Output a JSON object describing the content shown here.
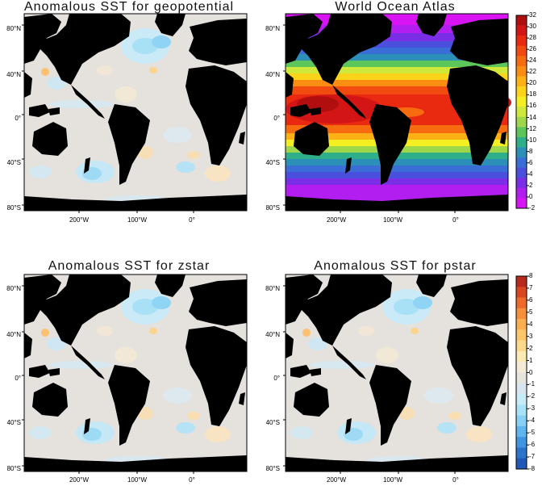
{
  "panels": [
    {
      "id": "geopotential",
      "title": "Anomalous SST for geopotential",
      "kind": "anomaly"
    },
    {
      "id": "woa",
      "title": "World Ocean Atlas",
      "kind": "sst"
    },
    {
      "id": "zstar",
      "title": "Anomalous SST for zstar",
      "kind": "anomaly"
    },
    {
      "id": "pstar",
      "title": "Anomalous SST for pstar",
      "kind": "anomaly"
    }
  ],
  "axes": {
    "y_ticks": [
      "80°N",
      "40°N",
      "0°",
      "40°S",
      "80°S"
    ],
    "x_ticks": [
      "200°W",
      "100°W",
      "0°"
    ]
  },
  "colorbars": {
    "sst": {
      "labels": [
        "32",
        "30",
        "28",
        "26",
        "24",
        "22",
        "20",
        "18",
        "16",
        "14",
        "12",
        "10",
        "8",
        "6",
        "4",
        "2",
        "0",
        "-2"
      ],
      "colors": [
        "#b10f0f",
        "#d41515",
        "#ea2a10",
        "#f24b10",
        "#f86c10",
        "#fb8e12",
        "#fdb114",
        "#fbd41a",
        "#f3ef22",
        "#cfe83a",
        "#9ed84a",
        "#5cc65a",
        "#2fae8a",
        "#2b8fb8",
        "#3a6ed6",
        "#4a4fde",
        "#7a2fe6",
        "#b21ef0",
        "#d814f5"
      ]
    },
    "anomaly": {
      "labels": [
        "8",
        "7",
        "6",
        "5",
        "4",
        "3",
        "2",
        "1",
        "0",
        "-1",
        "-2",
        "-3",
        "-4",
        "-5",
        "-6",
        "-7",
        "-8"
      ],
      "colors": [
        "#b82a1c",
        "#d9461f",
        "#ee6a2a",
        "#f78e3a",
        "#fbae4e",
        "#fcc76a",
        "#fdd98c",
        "#feeab3",
        "#f4ebd6",
        "#e7e4dd",
        "#d9e5ee",
        "#c5ecf8",
        "#a8e2f8",
        "#86d0f5",
        "#5fb6ee",
        "#3f95e0",
        "#2a74cc",
        "#1f58b6"
      ]
    }
  },
  "colors": {
    "land": "#000000",
    "ocean_anomaly_base": "#e4e0db",
    "frame": "#000000"
  }
}
